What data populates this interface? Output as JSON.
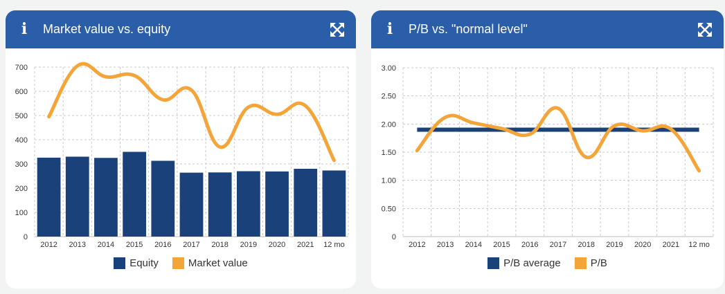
{
  "colors": {
    "header": "#2a5ea8",
    "bar": "#1a417a",
    "line": "#f4a53a",
    "avg": "#1a417a"
  },
  "icons": {
    "info": "info-icon",
    "expand": "expand-icon"
  },
  "panels": [
    {
      "title": "Market value vs. equity",
      "info_glyph": "i",
      "legend": [
        {
          "label": "Equity",
          "color": "#1a417a"
        },
        {
          "label": "Market value",
          "color": "#f4a53a"
        }
      ]
    },
    {
      "title": "P/B vs. \"normal level\"",
      "info_glyph": "i",
      "legend": [
        {
          "label": "P/B average",
          "color": "#1a417a"
        },
        {
          "label": "P/B",
          "color": "#f4a53a"
        }
      ]
    }
  ],
  "chart_data": [
    {
      "type": "bar",
      "title": "Market value vs. equity",
      "categories": [
        "2012",
        "2013",
        "2014",
        "2015",
        "2016",
        "2017",
        "2018",
        "2019",
        "2020",
        "2021",
        "12 mo"
      ],
      "ylim": [
        0,
        700
      ],
      "yticks": [
        "0",
        "100",
        "200",
        "300",
        "400",
        "500",
        "600",
        "700"
      ],
      "grid": true,
      "legend_position": "bottom",
      "series": [
        {
          "name": "Equity",
          "type": "bar",
          "values": [
            326,
            330,
            325,
            350,
            313,
            264,
            265,
            270,
            269,
            280,
            273
          ]
        },
        {
          "name": "Market value",
          "type": "line",
          "values": [
            495,
            705,
            660,
            665,
            565,
            605,
            370,
            535,
            505,
            540,
            315
          ]
        }
      ]
    },
    {
      "type": "line",
      "title": "P/B vs. \"normal level\"",
      "categories": [
        "2012",
        "2013",
        "2014",
        "2015",
        "2016",
        "2017",
        "2018",
        "2019",
        "2020",
        "2021",
        "12 mo"
      ],
      "ylim": [
        0,
        3.0
      ],
      "yticks": [
        "0",
        "0.50",
        "1.00",
        "1.50",
        "2.00",
        "2.50",
        "3.00"
      ],
      "grid": true,
      "legend_position": "bottom",
      "series": [
        {
          "name": "P/B average",
          "type": "line",
          "values": [
            1.9,
            1.9,
            1.9,
            1.9,
            1.9,
            1.9,
            1.9,
            1.9,
            1.9,
            1.9,
            1.9
          ]
        },
        {
          "name": "P/B",
          "type": "line",
          "values": [
            1.53,
            2.12,
            2.02,
            1.92,
            1.82,
            2.28,
            1.41,
            1.97,
            1.88,
            1.91,
            1.17
          ]
        }
      ]
    }
  ]
}
